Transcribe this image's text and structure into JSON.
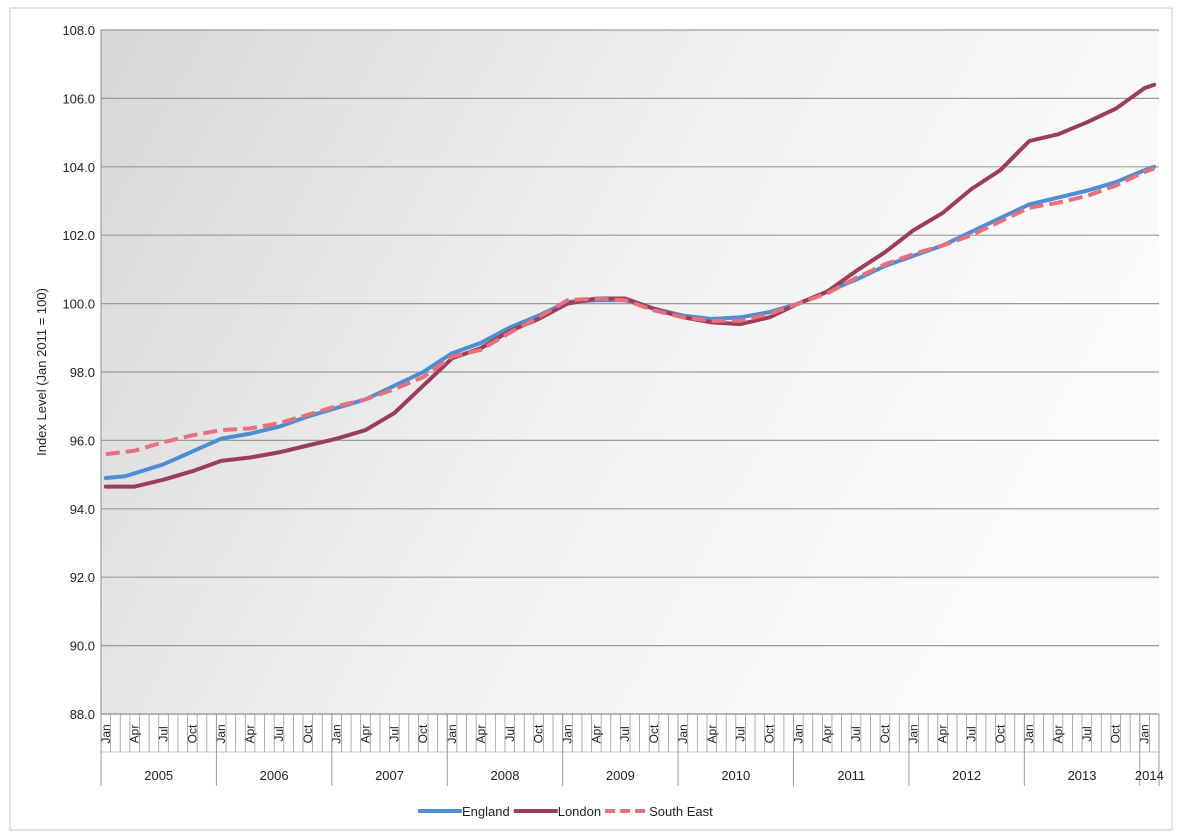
{
  "chart_data": {
    "type": "line",
    "ylabel": "Index Level (Jan 2011 = 100)",
    "ylim": [
      88,
      108
    ],
    "yticks": [
      "88.0",
      "90.0",
      "92.0",
      "94.0",
      "96.0",
      "98.0",
      "100.0",
      "102.0",
      "104.0",
      "106.0",
      "108.0"
    ],
    "month_tick_labels": [
      "Jan",
      "Apr",
      "Jul",
      "Oct"
    ],
    "year_labels": [
      "2005",
      "2006",
      "2007",
      "2008",
      "2009",
      "2010",
      "2011",
      "2012",
      "2013",
      "2014"
    ],
    "x_start": "2005-01",
    "x_end": "2014-02",
    "grid": true,
    "legend_position": "bottom-center",
    "series": [
      {
        "name": "England",
        "color": "#4a8fd4",
        "dash": "solid",
        "points": [
          [
            "2005-01",
            94.9
          ],
          [
            "2005-03",
            94.95
          ],
          [
            "2005-07",
            95.3
          ],
          [
            "2006-01",
            96.05
          ],
          [
            "2006-04",
            96.2
          ],
          [
            "2006-07",
            96.4
          ],
          [
            "2006-10",
            96.7
          ],
          [
            "2007-01",
            96.95
          ],
          [
            "2007-04",
            97.2
          ],
          [
            "2007-07",
            97.6
          ],
          [
            "2007-10",
            98.0
          ],
          [
            "2008-01",
            98.55
          ],
          [
            "2008-04",
            98.85
          ],
          [
            "2008-07",
            99.3
          ],
          [
            "2008-10",
            99.65
          ],
          [
            "2009-01",
            100.05
          ],
          [
            "2009-04",
            100.1
          ],
          [
            "2009-07",
            100.1
          ],
          [
            "2009-10",
            99.85
          ],
          [
            "2010-01",
            99.65
          ],
          [
            "2010-04",
            99.55
          ],
          [
            "2010-07",
            99.6
          ],
          [
            "2010-10",
            99.75
          ],
          [
            "2011-01",
            100.0
          ],
          [
            "2011-04",
            100.35
          ],
          [
            "2011-07",
            100.7
          ],
          [
            "2011-10",
            101.1
          ],
          [
            "2012-01",
            101.4
          ],
          [
            "2012-04",
            101.7
          ],
          [
            "2012-07",
            102.1
          ],
          [
            "2012-10",
            102.5
          ],
          [
            "2013-01",
            102.9
          ],
          [
            "2013-04",
            103.1
          ],
          [
            "2013-07",
            103.3
          ],
          [
            "2013-10",
            103.55
          ],
          [
            "2014-01",
            103.9
          ],
          [
            "2014-02",
            104.0
          ]
        ]
      },
      {
        "name": "London",
        "color": "#9c3d5c",
        "dash": "solid",
        "points": [
          [
            "2005-01",
            94.65
          ],
          [
            "2005-04",
            94.65
          ],
          [
            "2005-07",
            94.85
          ],
          [
            "2005-10",
            95.1
          ],
          [
            "2006-01",
            95.4
          ],
          [
            "2006-04",
            95.5
          ],
          [
            "2006-07",
            95.65
          ],
          [
            "2006-10",
            95.85
          ],
          [
            "2007-01",
            96.05
          ],
          [
            "2007-04",
            96.3
          ],
          [
            "2007-07",
            96.8
          ],
          [
            "2007-10",
            97.6
          ],
          [
            "2008-01",
            98.4
          ],
          [
            "2008-04",
            98.7
          ],
          [
            "2008-07",
            99.2
          ],
          [
            "2008-10",
            99.55
          ],
          [
            "2009-01",
            100.0
          ],
          [
            "2009-04",
            100.15
          ],
          [
            "2009-07",
            100.15
          ],
          [
            "2009-10",
            99.85
          ],
          [
            "2010-01",
            99.6
          ],
          [
            "2010-04",
            99.45
          ],
          [
            "2010-07",
            99.4
          ],
          [
            "2010-10",
            99.6
          ],
          [
            "2011-01",
            100.0
          ],
          [
            "2011-04",
            100.35
          ],
          [
            "2011-07",
            100.95
          ],
          [
            "2011-10",
            101.5
          ],
          [
            "2012-01",
            102.15
          ],
          [
            "2012-04",
            102.65
          ],
          [
            "2012-07",
            103.35
          ],
          [
            "2012-10",
            103.9
          ],
          [
            "2013-01",
            104.75
          ],
          [
            "2013-04",
            104.95
          ],
          [
            "2013-07",
            105.3
          ],
          [
            "2013-10",
            105.7
          ],
          [
            "2014-01",
            106.3
          ],
          [
            "2014-02",
            106.4
          ]
        ]
      },
      {
        "name": "South East",
        "color": "#e8707a",
        "dash": "dashed",
        "points": [
          [
            "2005-01",
            95.6
          ],
          [
            "2005-04",
            95.7
          ],
          [
            "2005-07",
            95.95
          ],
          [
            "2005-10",
            96.15
          ],
          [
            "2006-01",
            96.3
          ],
          [
            "2006-04",
            96.35
          ],
          [
            "2006-07",
            96.5
          ],
          [
            "2006-10",
            96.75
          ],
          [
            "2007-01",
            97.0
          ],
          [
            "2007-04",
            97.2
          ],
          [
            "2007-07",
            97.5
          ],
          [
            "2007-10",
            97.85
          ],
          [
            "2008-01",
            98.45
          ],
          [
            "2008-04",
            98.65
          ],
          [
            "2008-07",
            99.15
          ],
          [
            "2008-10",
            99.6
          ],
          [
            "2009-01",
            100.1
          ],
          [
            "2009-04",
            100.15
          ],
          [
            "2009-07",
            100.1
          ],
          [
            "2009-10",
            99.8
          ],
          [
            "2010-01",
            99.6
          ],
          [
            "2010-04",
            99.5
          ],
          [
            "2010-07",
            99.5
          ],
          [
            "2010-10",
            99.7
          ],
          [
            "2011-01",
            100.0
          ],
          [
            "2011-04",
            100.3
          ],
          [
            "2011-07",
            100.75
          ],
          [
            "2011-10",
            101.15
          ],
          [
            "2012-01",
            101.45
          ],
          [
            "2012-04",
            101.7
          ],
          [
            "2012-07",
            102.0
          ],
          [
            "2012-10",
            102.4
          ],
          [
            "2013-01",
            102.8
          ],
          [
            "2013-04",
            102.95
          ],
          [
            "2013-07",
            103.15
          ],
          [
            "2013-10",
            103.45
          ],
          [
            "2014-01",
            103.85
          ],
          [
            "2014-02",
            103.95
          ]
        ]
      }
    ]
  }
}
